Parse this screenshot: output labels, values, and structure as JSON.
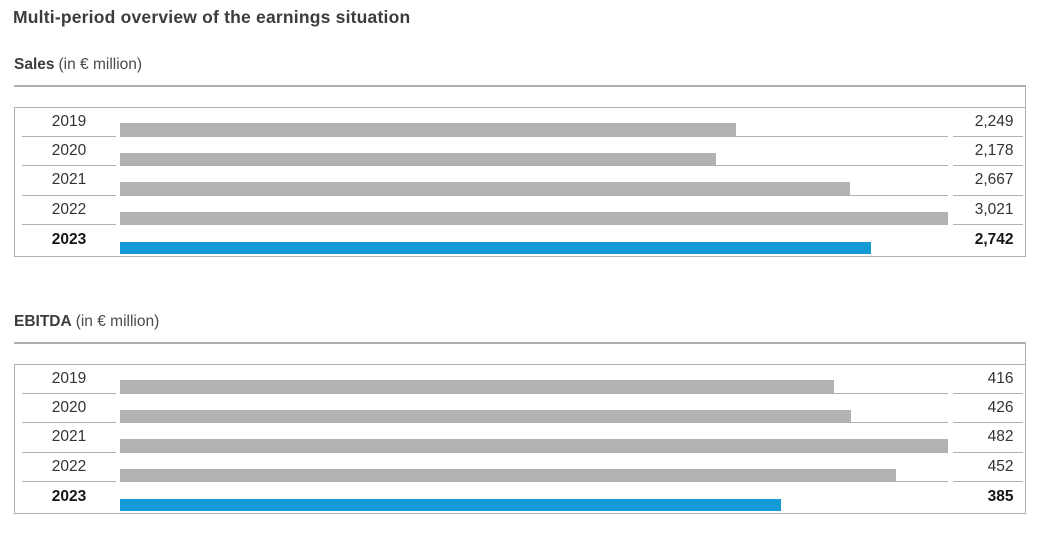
{
  "page_title": "Multi-period overview of the earnings situation",
  "colors": {
    "bar_gray": "#b2b2b2",
    "bar_highlight": "#149bd7",
    "line": "#b0b0b0",
    "text_dark": "#3c3c3b"
  },
  "chart_data": [
    {
      "type": "bar",
      "orientation": "horizontal",
      "title": "Sales",
      "unit_label": "(in € million)",
      "categories": [
        "2019",
        "2020",
        "2021",
        "2022",
        "2023"
      ],
      "values": [
        2249,
        2178,
        2667,
        3021,
        2742
      ],
      "value_labels": [
        "2,249",
        "2,178",
        "2,667",
        "3,021",
        "2,742"
      ],
      "highlight_category": "2023",
      "xlim": [
        0,
        3021
      ],
      "grid": false,
      "legend": false
    },
    {
      "type": "bar",
      "orientation": "horizontal",
      "title": "EBITDA",
      "unit_label": "(in € million)",
      "categories": [
        "2019",
        "2020",
        "2021",
        "2022",
        "2023"
      ],
      "values": [
        416,
        426,
        482,
        452,
        385
      ],
      "value_labels": [
        "416",
        "426",
        "482",
        "452",
        "385"
      ],
      "highlight_category": "2023",
      "xlim": [
        0,
        482
      ],
      "grid": false,
      "legend": false
    }
  ]
}
